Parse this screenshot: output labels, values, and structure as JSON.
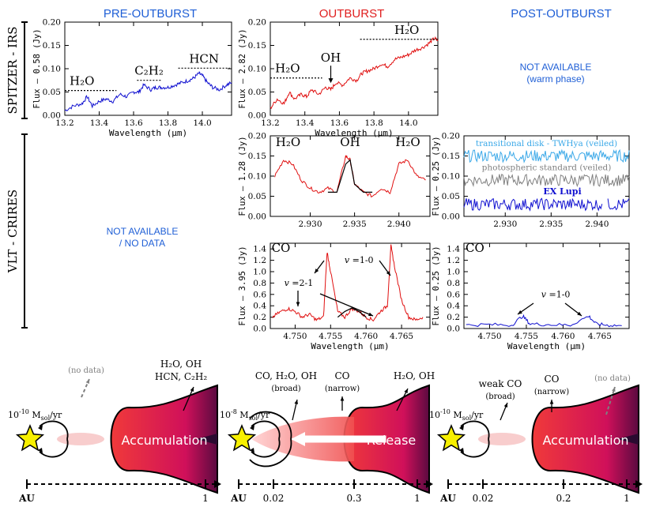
{
  "colors": {
    "pre": "#1f5fd6",
    "out": "#e02020",
    "post": "#1f5fd6",
    "red": "#e01010",
    "blue": "#1010d0",
    "lightblue": "#3aa8e8",
    "gray": "#808080",
    "disk_dark": "#c0184a",
    "disk_light": "#f0506a",
    "star": "#f7f000"
  },
  "headers": {
    "pre": "PRE-OUTBURST",
    "out": "OUTBURST",
    "post": "POST-OUTBURST"
  },
  "row_labels": {
    "spitzer": "SPITZER - IRS",
    "crires": "VLT - CRIRES"
  },
  "not_available": {
    "spitzer_post": [
      "NOT AVAILABLE",
      "(warm phase)"
    ],
    "crires_pre": [
      "NOT AVAILABLE",
      "/ NO DATA"
    ]
  },
  "chart_data": [
    {
      "id": "spitzer_pre",
      "type": "line",
      "ylabel": "Flux – 0.58 (Jy)",
      "xlabel": "Wavelength (μm)",
      "xlim": [
        13.2,
        14.17
      ],
      "ylim": [
        0,
        0.2
      ],
      "xticks": [
        "13.2",
        "13.4",
        "13.6",
        "13.8",
        "14.0"
      ],
      "xtickvals": [
        13.2,
        13.4,
        13.6,
        13.8,
        14.0
      ],
      "yticks": [
        "0.00",
        "0.05",
        "0.10",
        "0.15",
        "0.20"
      ],
      "ytickvals": [
        0,
        0.05,
        0.1,
        0.15,
        0.2
      ],
      "series": [
        {
          "name": "pre",
          "color": "#1010d0",
          "x": [
            13.2,
            13.25,
            13.3,
            13.33,
            13.36,
            13.4,
            13.44,
            13.48,
            13.52,
            13.56,
            13.6,
            13.63,
            13.66,
            13.7,
            13.73,
            13.76,
            13.8,
            13.84,
            13.88,
            13.92,
            13.95,
            13.98,
            14.0,
            14.03,
            14.06,
            14.1,
            14.14,
            14.17
          ],
          "y": [
            0.01,
            0.02,
            0.025,
            0.04,
            0.02,
            0.03,
            0.035,
            0.03,
            0.045,
            0.04,
            0.05,
            0.05,
            0.065,
            0.055,
            0.06,
            0.06,
            0.06,
            0.065,
            0.07,
            0.075,
            0.08,
            0.09,
            0.085,
            0.07,
            0.06,
            0.055,
            0.065,
            0.07
          ]
        }
      ],
      "annotations": [
        {
          "text": "H₂O",
          "x": 13.3,
          "y": 0.065,
          "x0": 13.2,
          "x1": 13.5
        },
        {
          "text": "C₂H₂",
          "x": 13.69,
          "y": 0.087,
          "x0": 13.62,
          "x1": 13.76
        },
        {
          "text": "HCN",
          "x": 14.01,
          "y": 0.113,
          "x0": 13.86,
          "x1": 14.16
        }
      ]
    },
    {
      "id": "spitzer_out",
      "type": "line",
      "ylabel": "Flux – 2.82 (Jy)",
      "xlabel": "Wavelength (μm)",
      "xlim": [
        13.2,
        14.17
      ],
      "ylim": [
        0,
        0.2
      ],
      "xticks": [
        "13.2",
        "13.4",
        "13.6",
        "13.8",
        "14.0"
      ],
      "xtickvals": [
        13.2,
        13.4,
        13.6,
        13.8,
        14.0
      ],
      "yticks": [
        "0.00",
        "0.05",
        "0.10",
        "0.15",
        "0.20"
      ],
      "ytickvals": [
        0,
        0.05,
        0.1,
        0.15,
        0.2
      ],
      "series": [
        {
          "name": "out",
          "color": "#e01010",
          "x": [
            13.2,
            13.24,
            13.28,
            13.31,
            13.34,
            13.38,
            13.41,
            13.44,
            13.48,
            13.52,
            13.55,
            13.58,
            13.62,
            13.66,
            13.7,
            13.73,
            13.76,
            13.8,
            13.84,
            13.88,
            13.92,
            13.96,
            14.0,
            14.04,
            14.08,
            14.12,
            14.15,
            14.17
          ],
          "y": [
            0.015,
            0.035,
            0.025,
            0.05,
            0.035,
            0.045,
            0.04,
            0.055,
            0.045,
            0.06,
            0.055,
            0.07,
            0.065,
            0.08,
            0.075,
            0.09,
            0.095,
            0.1,
            0.11,
            0.105,
            0.12,
            0.125,
            0.13,
            0.14,
            0.145,
            0.155,
            0.165,
            0.16
          ]
        }
      ],
      "annotations": [
        {
          "text": "H₂O",
          "x": 13.3,
          "y": 0.092,
          "x0": 13.2,
          "x1": 13.5
        },
        {
          "text": "OH",
          "x": 13.55,
          "y": 0.115,
          "arrow": true
        },
        {
          "text": "H₂O",
          "x": 13.99,
          "y": 0.175,
          "x0": 13.72,
          "x1": 14.17
        }
      ]
    },
    {
      "id": "crires_oh",
      "type": "line",
      "ylabel": "Flux – 1.28 (Jy)",
      "xlim": [
        2.9255,
        2.9435
      ],
      "ylim": [
        0,
        0.2
      ],
      "xticks": [
        "2.930",
        "2.935",
        "2.940"
      ],
      "xtickvals": [
        2.93,
        2.935,
        2.94
      ],
      "yticks": [
        "0.00",
        "0.05",
        "0.10",
        "0.15",
        "0.20"
      ],
      "ytickvals": [
        0,
        0.05,
        0.1,
        0.15,
        0.2
      ],
      "series": [
        {
          "name": "out",
          "color": "#e01010",
          "x": [
            2.926,
            2.927,
            2.928,
            2.929,
            2.93,
            2.931,
            2.932,
            2.933,
            2.934,
            2.9345,
            2.935,
            2.936,
            2.937,
            2.938,
            2.939,
            2.94,
            2.941,
            2.942,
            2.943
          ],
          "y": [
            0.1,
            0.14,
            0.13,
            0.09,
            0.07,
            0.06,
            0.07,
            0.06,
            0.15,
            0.14,
            0.08,
            0.06,
            0.05,
            0.07,
            0.06,
            0.13,
            0.14,
            0.1,
            0.09
          ]
        },
        {
          "name": "model",
          "color": "#000000",
          "x": [
            2.932,
            2.933,
            2.934,
            2.9345,
            2.935,
            2.936,
            2.937
          ],
          "y": [
            0.06,
            0.06,
            0.13,
            0.14,
            0.08,
            0.06,
            0.06
          ]
        }
      ],
      "annotations": [
        {
          "text": "H₂O",
          "x": 2.9275,
          "y": 0.175
        },
        {
          "text": "OH",
          "x": 2.9345,
          "y": 0.175
        },
        {
          "text": "H₂O",
          "x": 2.941,
          "y": 0.175
        }
      ]
    },
    {
      "id": "crires_oh_post",
      "type": "line",
      "ylabel": "Flux – 0.25 (Jy)",
      "xlim": [
        2.9255,
        2.9435
      ],
      "ylim": [
        0,
        0.2
      ],
      "xticks": [
        "2.930",
        "2.935",
        "2.940"
      ],
      "xtickvals": [
        2.93,
        2.935,
        2.94
      ],
      "yticks": [
        "0.00",
        "0.05",
        "0.10",
        "0.15",
        "0.20"
      ],
      "ytickvals": [
        0,
        0.05,
        0.1,
        0.15,
        0.2
      ],
      "series": [
        {
          "name": "transitional disk - TWHya (veiled)",
          "color": "#3aa8e8",
          "base": 0.15
        },
        {
          "name": "photospheric standard (veiled)",
          "color": "#808080",
          "base": 0.09
        },
        {
          "name": "EX Lupi",
          "color": "#1010d0",
          "base": 0.03
        }
      ]
    },
    {
      "id": "crires_co",
      "type": "line",
      "ylabel": "Flux – 3.95 (Jy)",
      "xlabel": "Wavelength (μm)",
      "xlim": [
        4.7465,
        4.769
      ],
      "ylim": [
        0,
        1.5
      ],
      "xticks": [
        "4.750",
        "4.755",
        "4.760",
        "4.765"
      ],
      "xtickvals": [
        4.75,
        4.755,
        4.76,
        4.765
      ],
      "yticks": [
        "0.0",
        "0.2",
        "0.4",
        "0.6",
        "0.8",
        "1.0",
        "1.2",
        "1.4"
      ],
      "ytickvals": [
        0,
        0.2,
        0.4,
        0.6,
        0.8,
        1.0,
        1.2,
        1.4
      ],
      "series": [
        {
          "name": "out",
          "color": "#e01010",
          "x": [
            4.7468,
            4.748,
            4.749,
            4.75,
            4.751,
            4.752,
            4.753,
            4.754,
            4.7545,
            4.755,
            4.756,
            4.757,
            4.758,
            4.759,
            4.76,
            4.761,
            4.762,
            4.763,
            4.7635,
            4.764,
            4.765,
            4.766,
            4.767,
            4.768
          ],
          "y": [
            0.2,
            0.3,
            0.35,
            0.3,
            0.2,
            0.25,
            0.15,
            0.2,
            1.35,
            1.0,
            0.3,
            0.2,
            0.35,
            0.3,
            0.2,
            0.15,
            0.3,
            0.4,
            1.45,
            1.1,
            0.5,
            0.2,
            0.15,
            0.2
          ]
        },
        {
          "name": "model",
          "color": "#000000",
          "x": [
            4.756,
            4.757,
            4.758,
            4.759,
            4.76
          ],
          "y": [
            0.2,
            0.3,
            0.36,
            0.3,
            0.2
          ]
        }
      ],
      "annotations": [
        {
          "text": "CO",
          "x": 4.748,
          "y": 1.35
        },
        {
          "text": "v =1-0",
          "x": 4.759,
          "y": 1.15
        },
        {
          "text": "v =2-1",
          "x": 4.7505,
          "y": 0.75
        }
      ]
    },
    {
      "id": "crires_co_post",
      "type": "line",
      "ylabel": "Flux – 0.25 (Jy)",
      "xlabel": "Wavelength (μm)",
      "xlim": [
        4.7465,
        4.769
      ],
      "ylim": [
        0,
        1.5
      ],
      "xticks": [
        "4.750",
        "4.755",
        "4.760",
        "4.765"
      ],
      "xtickvals": [
        4.75,
        4.755,
        4.76,
        4.765
      ],
      "yticks": [
        "0.0",
        "0.2",
        "0.4",
        "0.6",
        "0.8",
        "1.0",
        "1.2",
        "1.4"
      ],
      "ytickvals": [
        0,
        0.2,
        0.4,
        0.6,
        0.8,
        1.0,
        1.2,
        1.4
      ],
      "series": [
        {
          "name": "post",
          "color": "#1010d0",
          "x": [
            4.7468,
            4.75,
            4.753,
            4.7545,
            4.7555,
            4.758,
            4.761,
            4.7635,
            4.7645,
            4.766,
            4.768
          ],
          "y": [
            0.06,
            0.07,
            0.06,
            0.22,
            0.08,
            0.07,
            0.06,
            0.22,
            0.08,
            0.06,
            0.05
          ]
        }
      ],
      "annotations": [
        {
          "text": "CO",
          "x": 4.748,
          "y": 1.35
        },
        {
          "text": "v =1-0",
          "x": 4.759,
          "y": 0.55
        }
      ]
    }
  ],
  "cartoons": [
    {
      "id": "pre",
      "rate": "10",
      "rate_exp": "-10",
      "rate_unit": "M",
      "rate_sub": "sol",
      "rate_tail": "/yr",
      "no_data": "(no data)",
      "disk_label": "Accumulation",
      "top_label": [
        "H₂O, OH",
        "HCN, C₂H₂"
      ],
      "axis_left": "AU",
      "axis_ticks": [
        "1"
      ]
    },
    {
      "id": "out",
      "rate": "10",
      "rate_exp": "-8",
      "rate_unit": "M",
      "rate_sub": "sol",
      "rate_tail": "/yr",
      "labels": [
        [
          "CO, H₂O, OH",
          "(broad)"
        ],
        [
          "CO",
          "(narrow)"
        ],
        [
          "H₂O, OH"
        ]
      ],
      "disk_label": "Release",
      "axis_left": "AU",
      "axis_ticks": [
        "0.02",
        "0.3",
        "1"
      ]
    },
    {
      "id": "post",
      "rate": "10",
      "rate_exp": "-10",
      "rate_unit": "M",
      "rate_sub": "sol",
      "rate_tail": "/yr",
      "labels": [
        [
          "weak CO",
          "(broad)"
        ],
        [
          "CO",
          "(narrow)"
        ]
      ],
      "no_data": "(no data)",
      "disk_label": "Accumulation",
      "axis_left": "AU",
      "axis_ticks": [
        "0.02",
        "0.2",
        "1"
      ]
    }
  ]
}
